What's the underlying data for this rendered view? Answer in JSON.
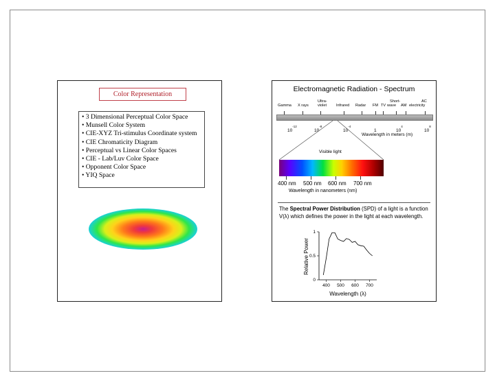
{
  "left_slide": {
    "title": "Color Representation",
    "items": [
      "• 3 Dimensional Perceptual Color Space",
      "• Munsell Color System",
      "• CIE-XYZ Tri-stimulus Coordinate system",
      "• CIE Chromaticity Diagram",
      "• Perceptual vs Linear Color Spaces",
      "• CIE - Lab/Luv Color Space",
      "• Opponent Color Space",
      "• YIQ Space"
    ]
  },
  "right_slide": {
    "title": "Electromagnetic Radiation - Spectrum",
    "bands": [
      "Gamma",
      "X rays",
      "Ultra-",
      "violet",
      "Infrared",
      "Radar",
      "FM",
      "TV",
      "Short-",
      "wave",
      "AM",
      "AC",
      "electricity"
    ],
    "exponent_labels": [
      {
        "base": "10",
        "exp": "-12"
      },
      {
        "base": "10",
        "exp": "-8"
      },
      {
        "base": "10",
        "exp": "-4"
      },
      {
        "base": "1",
        "exp": ""
      },
      {
        "base": "10",
        "exp": "4"
      },
      {
        "base": "10",
        "exp": "8"
      }
    ],
    "wavelength_meters_label": "Wavelength in meters (m)",
    "visible_light_label": "Visible light",
    "nm_ticks": [
      "400 nm",
      "500 nm",
      "600 nm",
      "700 nm"
    ],
    "wavelength_nm_label": "Wavelength in nanometers (nm)",
    "spd_text_pre": "The ",
    "spd_text_bold": "Spectral Power Distribution",
    "spd_text_post": " (SPD) of a light is a function  V(λ) which defines the power in the light at each wavelength.",
    "chart_data": {
      "type": "line",
      "xlabel": "Wavelength (λ)",
      "ylabel": "Relative Power",
      "x_ticks": [
        "400",
        "500",
        "600",
        "700"
      ],
      "y_ticks": [
        "0",
        "0.5",
        "1"
      ],
      "xlim": [
        350,
        750
      ],
      "ylim": [
        0,
        1
      ],
      "x": [
        380,
        400,
        420,
        440,
        460,
        480,
        500,
        520,
        540,
        560,
        580,
        600,
        620,
        640,
        660,
        680,
        700,
        720
      ],
      "y": [
        0.1,
        0.45,
        0.85,
        0.98,
        0.98,
        0.85,
        0.82,
        0.8,
        0.86,
        0.84,
        0.78,
        0.8,
        0.73,
        0.71,
        0.7,
        0.62,
        0.55,
        0.5
      ]
    }
  }
}
